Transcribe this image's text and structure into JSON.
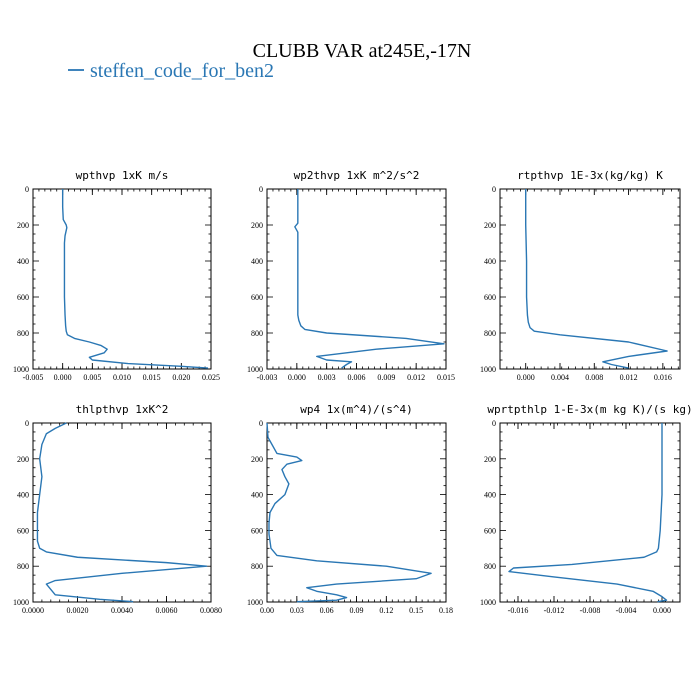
{
  "figure": {
    "title": "CLUBB VAR at245E,-17N",
    "legend": {
      "label": "steffen_code_for_ben2",
      "color": "#2a77b4",
      "placement": "top-left"
    }
  },
  "chart_data": [
    {
      "type": "line",
      "title": "wpthvp  1xK m/s",
      "xlabel": "",
      "ylabel": "",
      "xlim": [
        -0.005,
        0.025
      ],
      "ylim": [
        1000,
        0
      ],
      "xticks": [
        -0.005,
        0.0,
        0.005,
        0.01,
        0.015,
        0.02,
        0.025
      ],
      "xtick_labels": [
        "-0.005",
        "0.000",
        "0.005",
        "0.010",
        "0.015",
        "0.020",
        "0.025"
      ],
      "yticks": [
        0,
        200,
        400,
        600,
        800,
        1000
      ],
      "ytick_labels": [
        "0",
        "200",
        "400",
        "600",
        "800",
        "1000"
      ],
      "series": [
        {
          "name": "steffen_code_for_ben2",
          "x": [
            0.0,
            0.0,
            0.0001,
            0.0006,
            0.0007,
            0.0004,
            0.0003,
            0.0003,
            0.0003,
            0.0003,
            0.0004,
            0.0005,
            0.0006,
            0.0008,
            0.002,
            0.0045,
            0.0065,
            0.0075,
            0.007,
            0.0045,
            0.005,
            0.011,
            0.02,
            0.0245
          ],
          "y": [
            0,
            100,
            170,
            200,
            215,
            260,
            300,
            400,
            500,
            600,
            700,
            760,
            790,
            810,
            830,
            850,
            870,
            890,
            910,
            935,
            950,
            970,
            985,
            995
          ]
        }
      ]
    },
    {
      "type": "line",
      "title": "wp2thvp  1xK m^2/s^2",
      "xlabel": "",
      "ylabel": "",
      "xlim": [
        -0.003,
        0.015
      ],
      "ylim": [
        1000,
        0
      ],
      "xticks": [
        -0.003,
        0.0,
        0.003,
        0.006,
        0.009,
        0.012,
        0.015
      ],
      "xtick_labels": [
        "-0.003",
        "0.000",
        "0.003",
        "0.006",
        "0.009",
        "0.012",
        "0.015"
      ],
      "yticks": [
        0,
        200,
        400,
        600,
        800,
        1000
      ],
      "ytick_labels": [
        "0",
        "200",
        "400",
        "600",
        "800",
        "1000"
      ],
      "series": [
        {
          "name": "steffen_code_for_ben2",
          "x": [
            0.0001,
            0.0001,
            0.0001,
            -0.0002,
            0.0001,
            0.0001,
            0.0001,
            0.0001,
            0.0002,
            0.0004,
            0.0008,
            0.003,
            0.011,
            0.0148,
            0.008,
            0.002,
            0.003,
            0.0055,
            0.005,
            0.0045
          ],
          "y": [
            0,
            100,
            190,
            210,
            240,
            400,
            600,
            700,
            730,
            760,
            780,
            800,
            830,
            860,
            890,
            930,
            950,
            960,
            975,
            995
          ]
        }
      ]
    },
    {
      "type": "line",
      "title": "rtpthvp  1E-3x(kg/kg) K",
      "xlabel": "",
      "ylabel": "",
      "xlim": [
        -0.003,
        0.018
      ],
      "ylim": [
        1000,
        0
      ],
      "xticks": [
        0.0,
        0.004,
        0.008,
        0.012,
        0.016
      ],
      "xtick_labels": [
        "0.000",
        "0.004",
        "0.008",
        "0.012",
        "0.016"
      ],
      "yticks": [
        0,
        200,
        400,
        600,
        800,
        1000
      ],
      "ytick_labels": [
        "0",
        "200",
        "400",
        "600",
        "800",
        "1000"
      ],
      "series": [
        {
          "name": "steffen_code_for_ben2",
          "x": [
            0.0,
            0.0,
            0.0001,
            0.0001,
            0.0002,
            0.0003,
            0.0005,
            0.001,
            0.004,
            0.012,
            0.0165,
            0.012,
            0.009,
            0.01,
            0.012
          ],
          "y": [
            0,
            200,
            400,
            600,
            700,
            740,
            770,
            790,
            810,
            850,
            900,
            930,
            960,
            975,
            995
          ]
        }
      ]
    },
    {
      "type": "line",
      "title": "thlpthvp  1xK^2",
      "xlabel": "",
      "ylabel": "",
      "xlim": [
        0.0,
        0.008
      ],
      "ylim": [
        1000,
        0
      ],
      "xticks": [
        0.0,
        0.002,
        0.004,
        0.006,
        0.008
      ],
      "xtick_labels": [
        "0.0000",
        "0.0020",
        "0.0040",
        "0.0060",
        "0.0080"
      ],
      "yticks": [
        0,
        200,
        400,
        600,
        800,
        1000
      ],
      "ytick_labels": [
        "0",
        "200",
        "400",
        "600",
        "800",
        "1000"
      ],
      "series": [
        {
          "name": "steffen_code_for_ben2",
          "x": [
            0.0015,
            0.001,
            0.0006,
            0.0004,
            0.0003,
            0.0004,
            0.0003,
            0.0002,
            0.0002,
            0.0002,
            0.0003,
            0.0006,
            0.002,
            0.006,
            0.0078,
            0.004,
            0.001,
            0.0006,
            0.0008,
            0.001,
            0.003,
            0.0045
          ],
          "y": [
            0,
            30,
            60,
            120,
            200,
            300,
            400,
            500,
            600,
            660,
            700,
            720,
            750,
            780,
            800,
            840,
            880,
            900,
            930,
            960,
            985,
            998
          ]
        }
      ]
    },
    {
      "type": "line",
      "title": "wp4  1x(m^4)/(s^4)",
      "xlabel": "",
      "ylabel": "",
      "xlim": [
        0.0,
        0.18
      ],
      "ylim": [
        1000,
        0
      ],
      "xticks": [
        0.0,
        0.03,
        0.06,
        0.09,
        0.12,
        0.15,
        0.18
      ],
      "xtick_labels": [
        "0.00",
        "0.03",
        "0.06",
        "0.09",
        "0.12",
        "0.15",
        "0.18"
      ],
      "yticks": [
        0,
        200,
        400,
        600,
        800,
        1000
      ],
      "ytick_labels": [
        "0",
        "200",
        "400",
        "600",
        "800",
        "1000"
      ],
      "series": [
        {
          "name": "steffen_code_for_ben2",
          "x": [
            0.0,
            0.001,
            0.005,
            0.01,
            0.03,
            0.035,
            0.02,
            0.015,
            0.018,
            0.022,
            0.018,
            0.008,
            0.003,
            0.002,
            0.002,
            0.004,
            0.01,
            0.05,
            0.12,
            0.165,
            0.15,
            0.07,
            0.04,
            0.05,
            0.07,
            0.08,
            0.07,
            0.03
          ],
          "y": [
            0,
            80,
            120,
            170,
            190,
            210,
            230,
            260,
            300,
            340,
            400,
            450,
            500,
            560,
            620,
            700,
            740,
            770,
            800,
            840,
            870,
            900,
            920,
            940,
            960,
            975,
            990,
            998
          ]
        }
      ]
    },
    {
      "type": "line",
      "title": "wprtpthlp  1-E-3x(m kg K)/(s kg)",
      "xlabel": "",
      "ylabel": "",
      "xlim": [
        -0.018,
        0.002
      ],
      "ylim": [
        1000,
        0
      ],
      "xticks": [
        -0.016,
        -0.012,
        -0.008,
        -0.004,
        0.0
      ],
      "xtick_labels": [
        "-0.016",
        "-0.012",
        "-0.008",
        "-0.004",
        "0.000"
      ],
      "yticks": [
        0,
        200,
        400,
        600,
        800,
        1000
      ],
      "ytick_labels": [
        "0",
        "200",
        "400",
        "600",
        "800",
        "1000"
      ],
      "series": [
        {
          "name": "steffen_code_for_ben2",
          "x": [
            0.0,
            0.0,
            0.0,
            -0.0002,
            -0.0004,
            -0.0006,
            -0.002,
            -0.01,
            -0.0165,
            -0.017,
            -0.012,
            -0.005,
            -0.001,
            0.0,
            0.0005,
            -0.0005
          ],
          "y": [
            0,
            200,
            400,
            600,
            700,
            720,
            750,
            790,
            810,
            830,
            860,
            900,
            940,
            970,
            990,
            998
          ]
        }
      ]
    }
  ]
}
